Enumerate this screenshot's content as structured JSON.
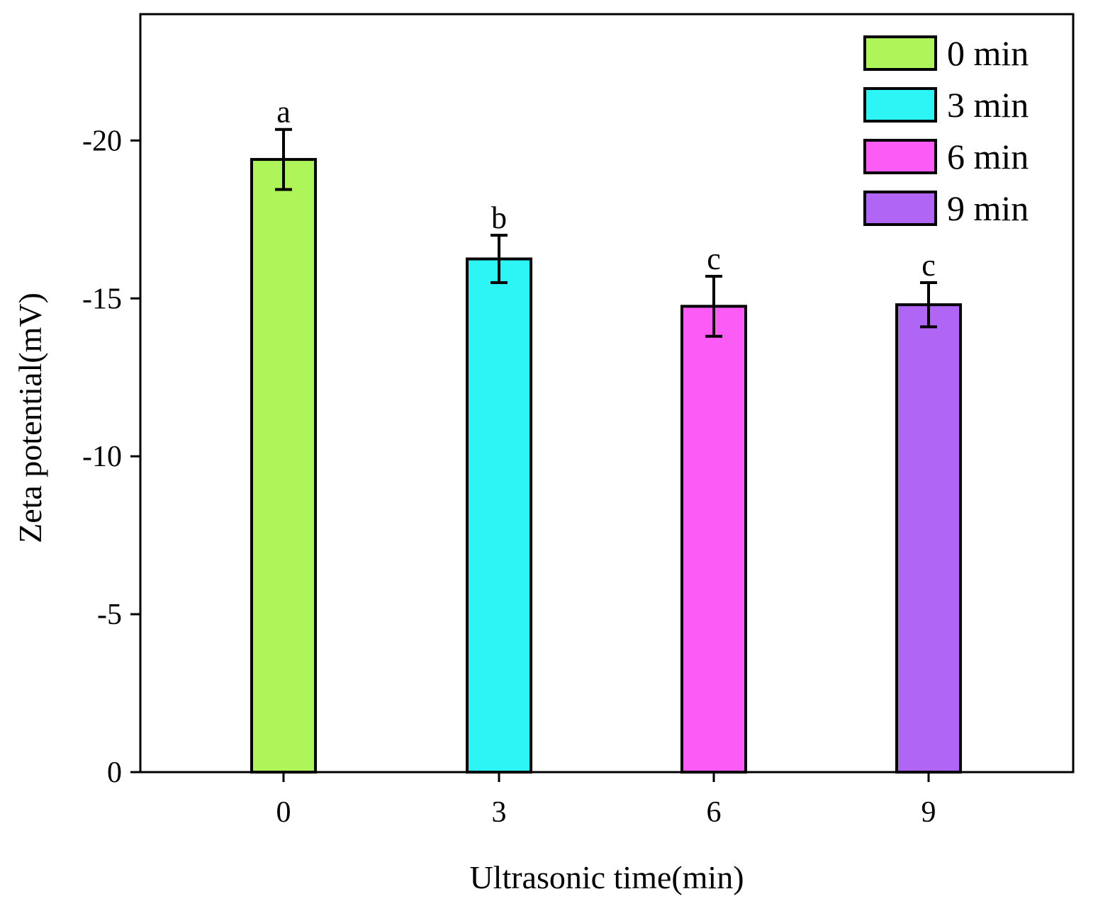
{
  "chart_data": {
    "type": "bar",
    "title": "",
    "xlabel": "Ultrasonic time(min)",
    "ylabel": "Zeta potential(mV)",
    "categories": [
      "0",
      "3",
      "6",
      "9"
    ],
    "values": [
      -19.4,
      -16.25,
      -14.75,
      -14.8
    ],
    "errors": [
      0.95,
      0.75,
      0.95,
      0.7
    ],
    "significance": [
      "a",
      "b",
      "c",
      "c"
    ],
    "colors": [
      "#aef55a",
      "#2ef5f5",
      "#fb5cf5",
      "#b065f5"
    ],
    "ylim": [
      0,
      -24
    ],
    "yticks": [
      0,
      -5,
      -10,
      -15,
      -20
    ],
    "ytick_labels": [
      "0",
      "-5",
      "-10",
      "-15",
      "-20"
    ],
    "legend": {
      "position": "top-right",
      "entries": [
        "0 min",
        "3 min",
        "6 min",
        "9 min"
      ]
    }
  }
}
